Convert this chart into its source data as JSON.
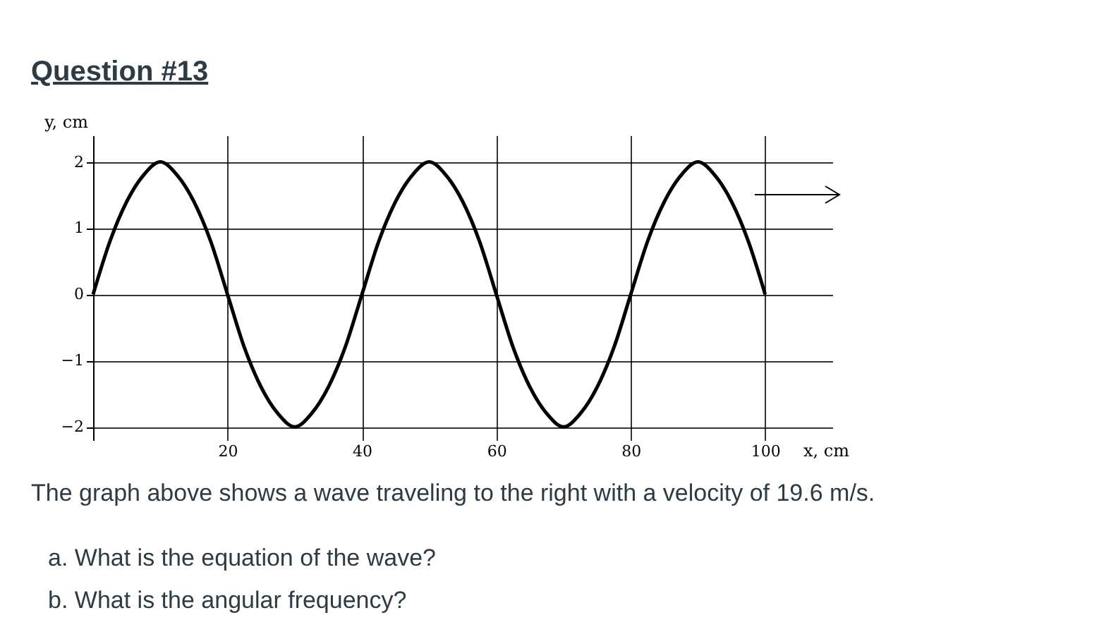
{
  "chart_data": {
    "type": "line",
    "title": "Question #13",
    "xlabel": "x, cm",
    "ylabel": "y, cm",
    "x": [
      0,
      2.5,
      5,
      7.5,
      10,
      12.5,
      15,
      17.5,
      20,
      22.5,
      25,
      27.5,
      30,
      32.5,
      35,
      37.5,
      40,
      42.5,
      45,
      47.5,
      50,
      52.5,
      55,
      57.5,
      60,
      62.5,
      65,
      67.5,
      70,
      72.5,
      75,
      77.5,
      80,
      82.5,
      85,
      87.5,
      90,
      92.5,
      95,
      97.5,
      100
    ],
    "series": [
      {
        "color": "#000000",
        "values": [
          0,
          0.8,
          1.4,
          1.8,
          2,
          1.8,
          1.4,
          0.8,
          0,
          -0.8,
          -1.4,
          -1.8,
          -2,
          -1.8,
          -1.4,
          -0.8,
          0,
          0.8,
          1.4,
          1.8,
          2,
          1.8,
          1.4,
          0.8,
          0,
          -0.8,
          -1.4,
          -1.8,
          -2,
          -1.8,
          -1.4,
          -0.8,
          0,
          0.8,
          1.4,
          1.8,
          2,
          1.8,
          1.4,
          0.8,
          0
        ]
      }
    ],
    "xlim": [
      0,
      110
    ],
    "xticks": [
      20,
      40,
      60,
      80,
      100
    ],
    "ylim": [
      -2.2,
      2.4
    ],
    "yticks": [
      -2,
      -1,
      0,
      1,
      2
    ],
    "grid": true,
    "marker": "none",
    "line_style": "solid",
    "annotations": [
      "The graph above shows a wave traveling to the right with a velocity of 19.6 m/s.",
      "a. What is the equation of the wave?",
      "b. What is the angular frequency?"
    ]
  }
}
